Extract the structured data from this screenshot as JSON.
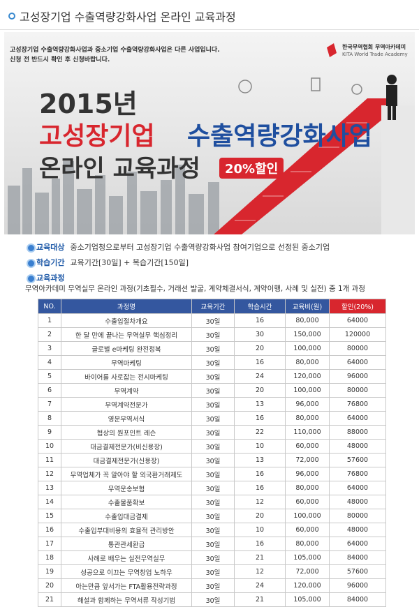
{
  "header": {
    "title": "고성장기업 수출역량강화사업 온라인 교육과정"
  },
  "banner": {
    "notice": [
      "고성장기업 수출역량강화사업과 중소기업 수출역량강화사업은 다른 사업입니다.",
      "신청 전 반드시 확인 후 신청바랍니다."
    ],
    "logo": {
      "name": "한국무역협회 무역아카데미",
      "sub": "KITA World Trade Academy"
    },
    "year": "2015년",
    "title_red": "고성장기업",
    "title_blue": "수출역량강화사업",
    "subtitle": "온라인 교육과정",
    "badge": "20%할인"
  },
  "info": [
    {
      "label": "교육대상",
      "text": "중소기업청으로부터 고성장기업 수출역량강화사업 참여기업으로 선정된 중소기업"
    },
    {
      "label": "학습기간",
      "text": "교육기간[30일] + 복습기간[150일]"
    },
    {
      "label": "교육과정",
      "text": "무역아카데미 무역실무 온라인 과정(기초필수, 거래선 발굴, 계약체결서식, 계약이행, 사례 및 실전) 중 1개 과정"
    }
  ],
  "table": {
    "columns": [
      "NO.",
      "과정명",
      "교육기간",
      "학습시간",
      "교육비(원)",
      "할인(20%)"
    ],
    "rows": [
      [
        "1",
        "수출입절차개요",
        "30일",
        "16",
        "80,000",
        "64000"
      ],
      [
        "2",
        "한 달 만에 끝나는 무역실무 핵심정리",
        "30일",
        "30",
        "150,000",
        "120000"
      ],
      [
        "3",
        "글로벌 e마케팅 완전정복",
        "30일",
        "20",
        "100,000",
        "80000"
      ],
      [
        "4",
        "무역마케팅",
        "30일",
        "16",
        "80,000",
        "64000"
      ],
      [
        "5",
        "바이어를 사로잡는 전시마케팅",
        "30일",
        "24",
        "120,000",
        "96000"
      ],
      [
        "6",
        "무역계약",
        "30일",
        "20",
        "100,000",
        "80000"
      ],
      [
        "7",
        "무역계약전문가",
        "30일",
        "13",
        "96,000",
        "76800"
      ],
      [
        "8",
        "영문무역서식",
        "30일",
        "16",
        "80,000",
        "64000"
      ],
      [
        "9",
        "협상의 원포인트 레슨",
        "30일",
        "22",
        "110,000",
        "88000"
      ],
      [
        "10",
        "대금결제전문가(비신용장)",
        "30일",
        "10",
        "60,000",
        "48000"
      ],
      [
        "11",
        "대금결제전문가(신용장)",
        "30일",
        "13",
        "72,000",
        "57600"
      ],
      [
        "12",
        "무역업체가 꼭 알아야 할 외국환거래제도",
        "30일",
        "16",
        "96,000",
        "76800"
      ],
      [
        "13",
        "무역운송보험",
        "30일",
        "16",
        "80,000",
        "64000"
      ],
      [
        "14",
        "수출물품확보",
        "30일",
        "12",
        "60,000",
        "48000"
      ],
      [
        "15",
        "수출입대금결제",
        "30일",
        "20",
        "100,000",
        "80000"
      ],
      [
        "16",
        "수출입부대비용의 효율적 관리방안",
        "30일",
        "10",
        "60,000",
        "48000"
      ],
      [
        "17",
        "통관관세환급",
        "30일",
        "16",
        "80,000",
        "64000"
      ],
      [
        "18",
        "사례로 배우는 실전무역실무",
        "30일",
        "21",
        "105,000",
        "84000"
      ],
      [
        "19",
        "성공으로 이끄는 무역창업 노하우",
        "30일",
        "12",
        "72,000",
        "57600"
      ],
      [
        "20",
        "아는만큼 앞서가는 FTA활용전략과정",
        "30일",
        "24",
        "120,000",
        "96000"
      ],
      [
        "21",
        "해설과 함께하는 무역서류 작성기법",
        "30일",
        "21",
        "105,000",
        "84000"
      ]
    ]
  }
}
